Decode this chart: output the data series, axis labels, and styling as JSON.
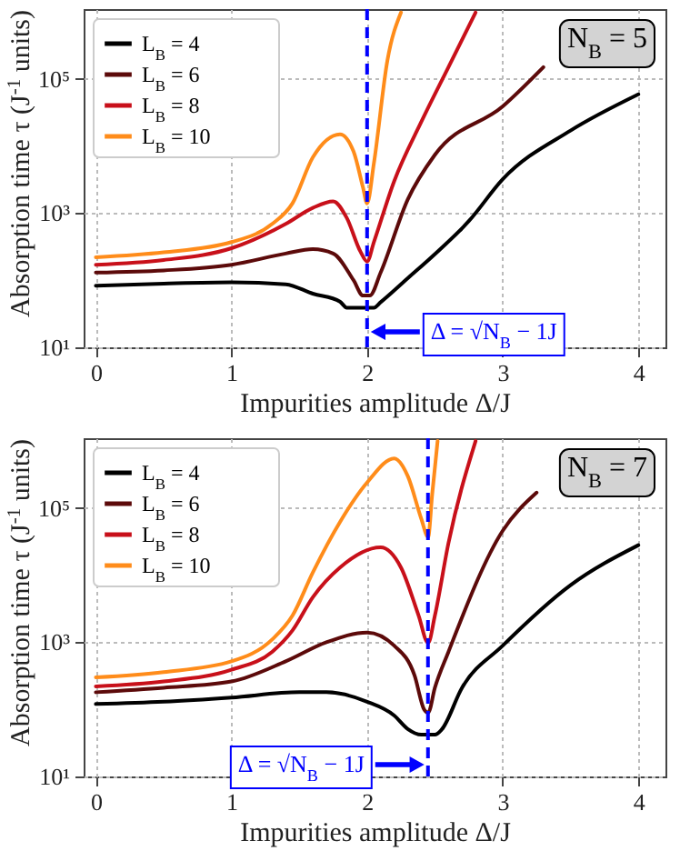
{
  "chart_data": [
    {
      "type": "line",
      "xlabel": "Impurities amplitude Δ/J",
      "ylabel": "Absorption time τ (J$^{-1}$ units)",
      "log": "y",
      "grid": true,
      "legend": "top left",
      "line_style": "solid",
      "xlim": [
        -0.09,
        4.2
      ],
      "xticks": [
        0,
        1,
        2,
        3,
        4
      ],
      "ylim": [
        10,
        1100000
      ],
      "yticks": [
        {
          "value": 10,
          "label": "10¹"
        },
        {
          "value": 1000,
          "label": "10³"
        },
        {
          "value": 100000,
          "label": "10⁵"
        }
      ],
      "series": [
        {
          "name": "L$_{B}$ = 4",
          "color": "#000000",
          "x": [
            0,
            0.5,
            1,
            1.4,
            1.6,
            1.8,
            1.85,
            2.05,
            2.1,
            2.3,
            2.5,
            2.75,
            3,
            3.5,
            4
          ],
          "values": [
            83,
            89,
            93,
            87,
            63,
            48,
            39,
            39,
            47,
            107,
            245,
            760,
            3200,
            17000,
            59000
          ]
        },
        {
          "name": "L$_{B}$ = 6",
          "color": "#5c0a0a",
          "x": [
            0,
            0.5,
            1,
            1.4,
            1.6,
            1.75,
            1.9,
            1.97,
            2.02,
            2.1,
            2.3,
            2.5,
            3,
            3.3
          ],
          "values": [
            130,
            140,
            170,
            250,
            290,
            250,
            100,
            59,
            59,
            130,
            1600,
            7400,
            39000,
            150000
          ]
        },
        {
          "name": "L$_{B}$ = 8",
          "color": "#c8101a",
          "x": [
            0,
            0.5,
            1,
            1.4,
            1.6,
            1.75,
            1.85,
            1.95,
            2,
            2.05,
            2.2,
            2.4,
            2.6,
            2.8
          ],
          "values": [
            170,
            200,
            300,
            690,
            1200,
            1500,
            850,
            270,
            190,
            370,
            3000,
            23000,
            150000,
            980000
          ]
        },
        {
          "name": "L$_{B}$ = 10",
          "color": "#ff8c1a",
          "x": [
            0,
            0.5,
            1,
            1.3,
            1.45,
            1.6,
            1.8,
            1.9,
            1.97,
            2,
            2.05,
            2.15,
            2.25
          ],
          "values": [
            220,
            260,
            370,
            690,
            1400,
            6800,
            15000,
            8300,
            2400,
            1400,
            5500,
            190000,
            980000
          ]
        }
      ],
      "ref_lines": [
        {
          "axis": "x",
          "value": 2,
          "color": "#0000ff",
          "line_style": "dashed"
        }
      ],
      "annotations": [
        {
          "text": "Δ = √N$_{B}$ − 1J",
          "x": 2,
          "y": 17
        },
        "N$_{B}$ = 5"
      ]
    },
    {
      "type": "line",
      "xlabel": "Impurities amplitude Δ/J",
      "ylabel": "Absorption time τ (J$^{-1}$ units)",
      "log": "y",
      "grid": true,
      "legend": "top left",
      "line_style": "solid",
      "xlim": [
        -0.09,
        4.2
      ],
      "xticks": [
        0,
        1,
        2,
        3,
        4
      ],
      "ylim": [
        10,
        1100000
      ],
      "yticks": [
        {
          "value": 10,
          "label": "10¹"
        },
        {
          "value": 1000,
          "label": "10³"
        },
        {
          "value": 100000,
          "label": "10⁵"
        }
      ],
      "series": [
        {
          "name": "L$_{B}$ = 4",
          "color": "#000000",
          "x": [
            0,
            0.5,
            1,
            1.5,
            1.7,
            2,
            2.2,
            2.3,
            2.4,
            2.5,
            2.55,
            2.7,
            3,
            3.5,
            4
          ],
          "values": [
            120,
            130,
            150,
            180,
            180,
            130,
            81,
            51,
            42,
            42,
            50,
            210,
            890,
            7100,
            28000
          ]
        },
        {
          "name": "L$_{B}$ = 6",
          "color": "#5c0a0a",
          "x": [
            0,
            0.5,
            1,
            1.4,
            1.7,
            2,
            2.2,
            2.35,
            2.42,
            2.45,
            2.5,
            2.6,
            3,
            3.25
          ],
          "values": [
            180,
            210,
            260,
            520,
            1000,
            1400,
            890,
            320,
            100,
            89,
            210,
            720,
            46000,
            170000
          ]
        },
        {
          "name": "L$_{B}$ = 8",
          "color": "#c8101a",
          "x": [
            0,
            0.5,
            1,
            1.3,
            1.45,
            1.6,
            1.8,
            2.1,
            2.25,
            2.38,
            2.45,
            2.5,
            2.6,
            2.8
          ],
          "values": [
            220,
            260,
            390,
            720,
            1500,
            4700,
            13000,
            26000,
            13000,
            2500,
            980,
            2500,
            30000,
            1000000
          ]
        },
        {
          "name": "L$_{B}$ = 10",
          "color": "#ff8c1a",
          "x": [
            0,
            0.5,
            1,
            1.3,
            1.45,
            1.6,
            1.8,
            2,
            2.2,
            2.3,
            2.4,
            2.45,
            2.48,
            2.52
          ],
          "values": [
            300,
            360,
            520,
            1100,
            2500,
            11000,
            62000,
            240000,
            550000,
            300000,
            69000,
            37000,
            160000,
            1000000
          ]
        }
      ],
      "ref_lines": [
        {
          "axis": "x",
          "value": 2.449,
          "color": "#0000ff",
          "line_style": "dashed"
        }
      ],
      "annotations": [
        {
          "text": "Δ = √N$_{B}$ − 1J",
          "x": 2.449,
          "y": 15
        },
        "N$_{B}$ = 7"
      ]
    }
  ]
}
